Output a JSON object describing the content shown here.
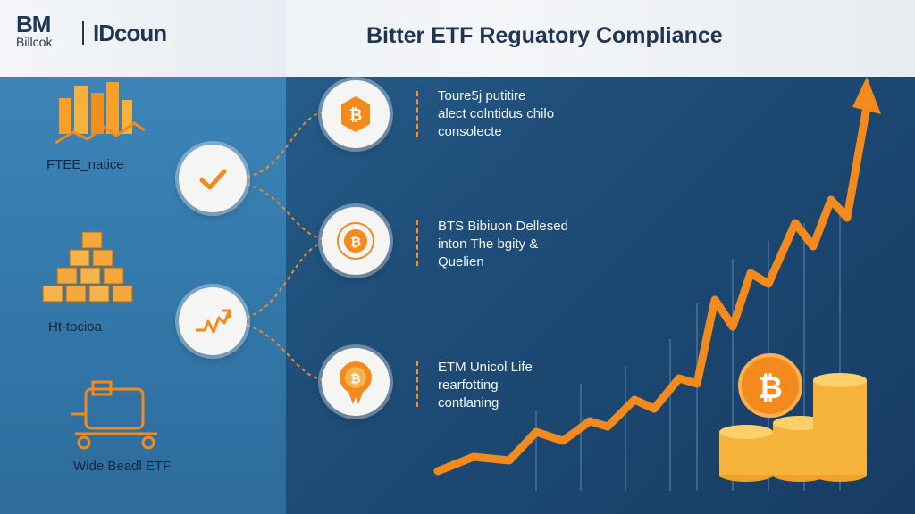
{
  "brand": {
    "main": "BM",
    "sub": "Billcok",
    "alt": "IDcoun"
  },
  "title": "Bitter ETF Reguatory Compliance",
  "left_labels": [
    "FTEE_natice",
    "Ht-tocioa",
    "Wide Beadl ETF"
  ],
  "bullets": [
    {
      "lines": [
        "Toure5j putitire",
        "alect colntidus chilo",
        "consolecte"
      ]
    },
    {
      "lines": [
        "BTS Bibiuon Dellesed",
        "inton The bgity &",
        "Quelien"
      ]
    },
    {
      "lines": [
        "ETM Unicol Life",
        "rearfotting",
        "contlaning"
      ]
    }
  ],
  "icons": {
    "checkmark": "checkmark-icon",
    "trend": "trend-arrow-icon",
    "bitcoin": "bitcoin-icon"
  },
  "colors": {
    "accent": "#f28a1e",
    "navy": "#1f3550",
    "blue": "#2f6f9e"
  }
}
